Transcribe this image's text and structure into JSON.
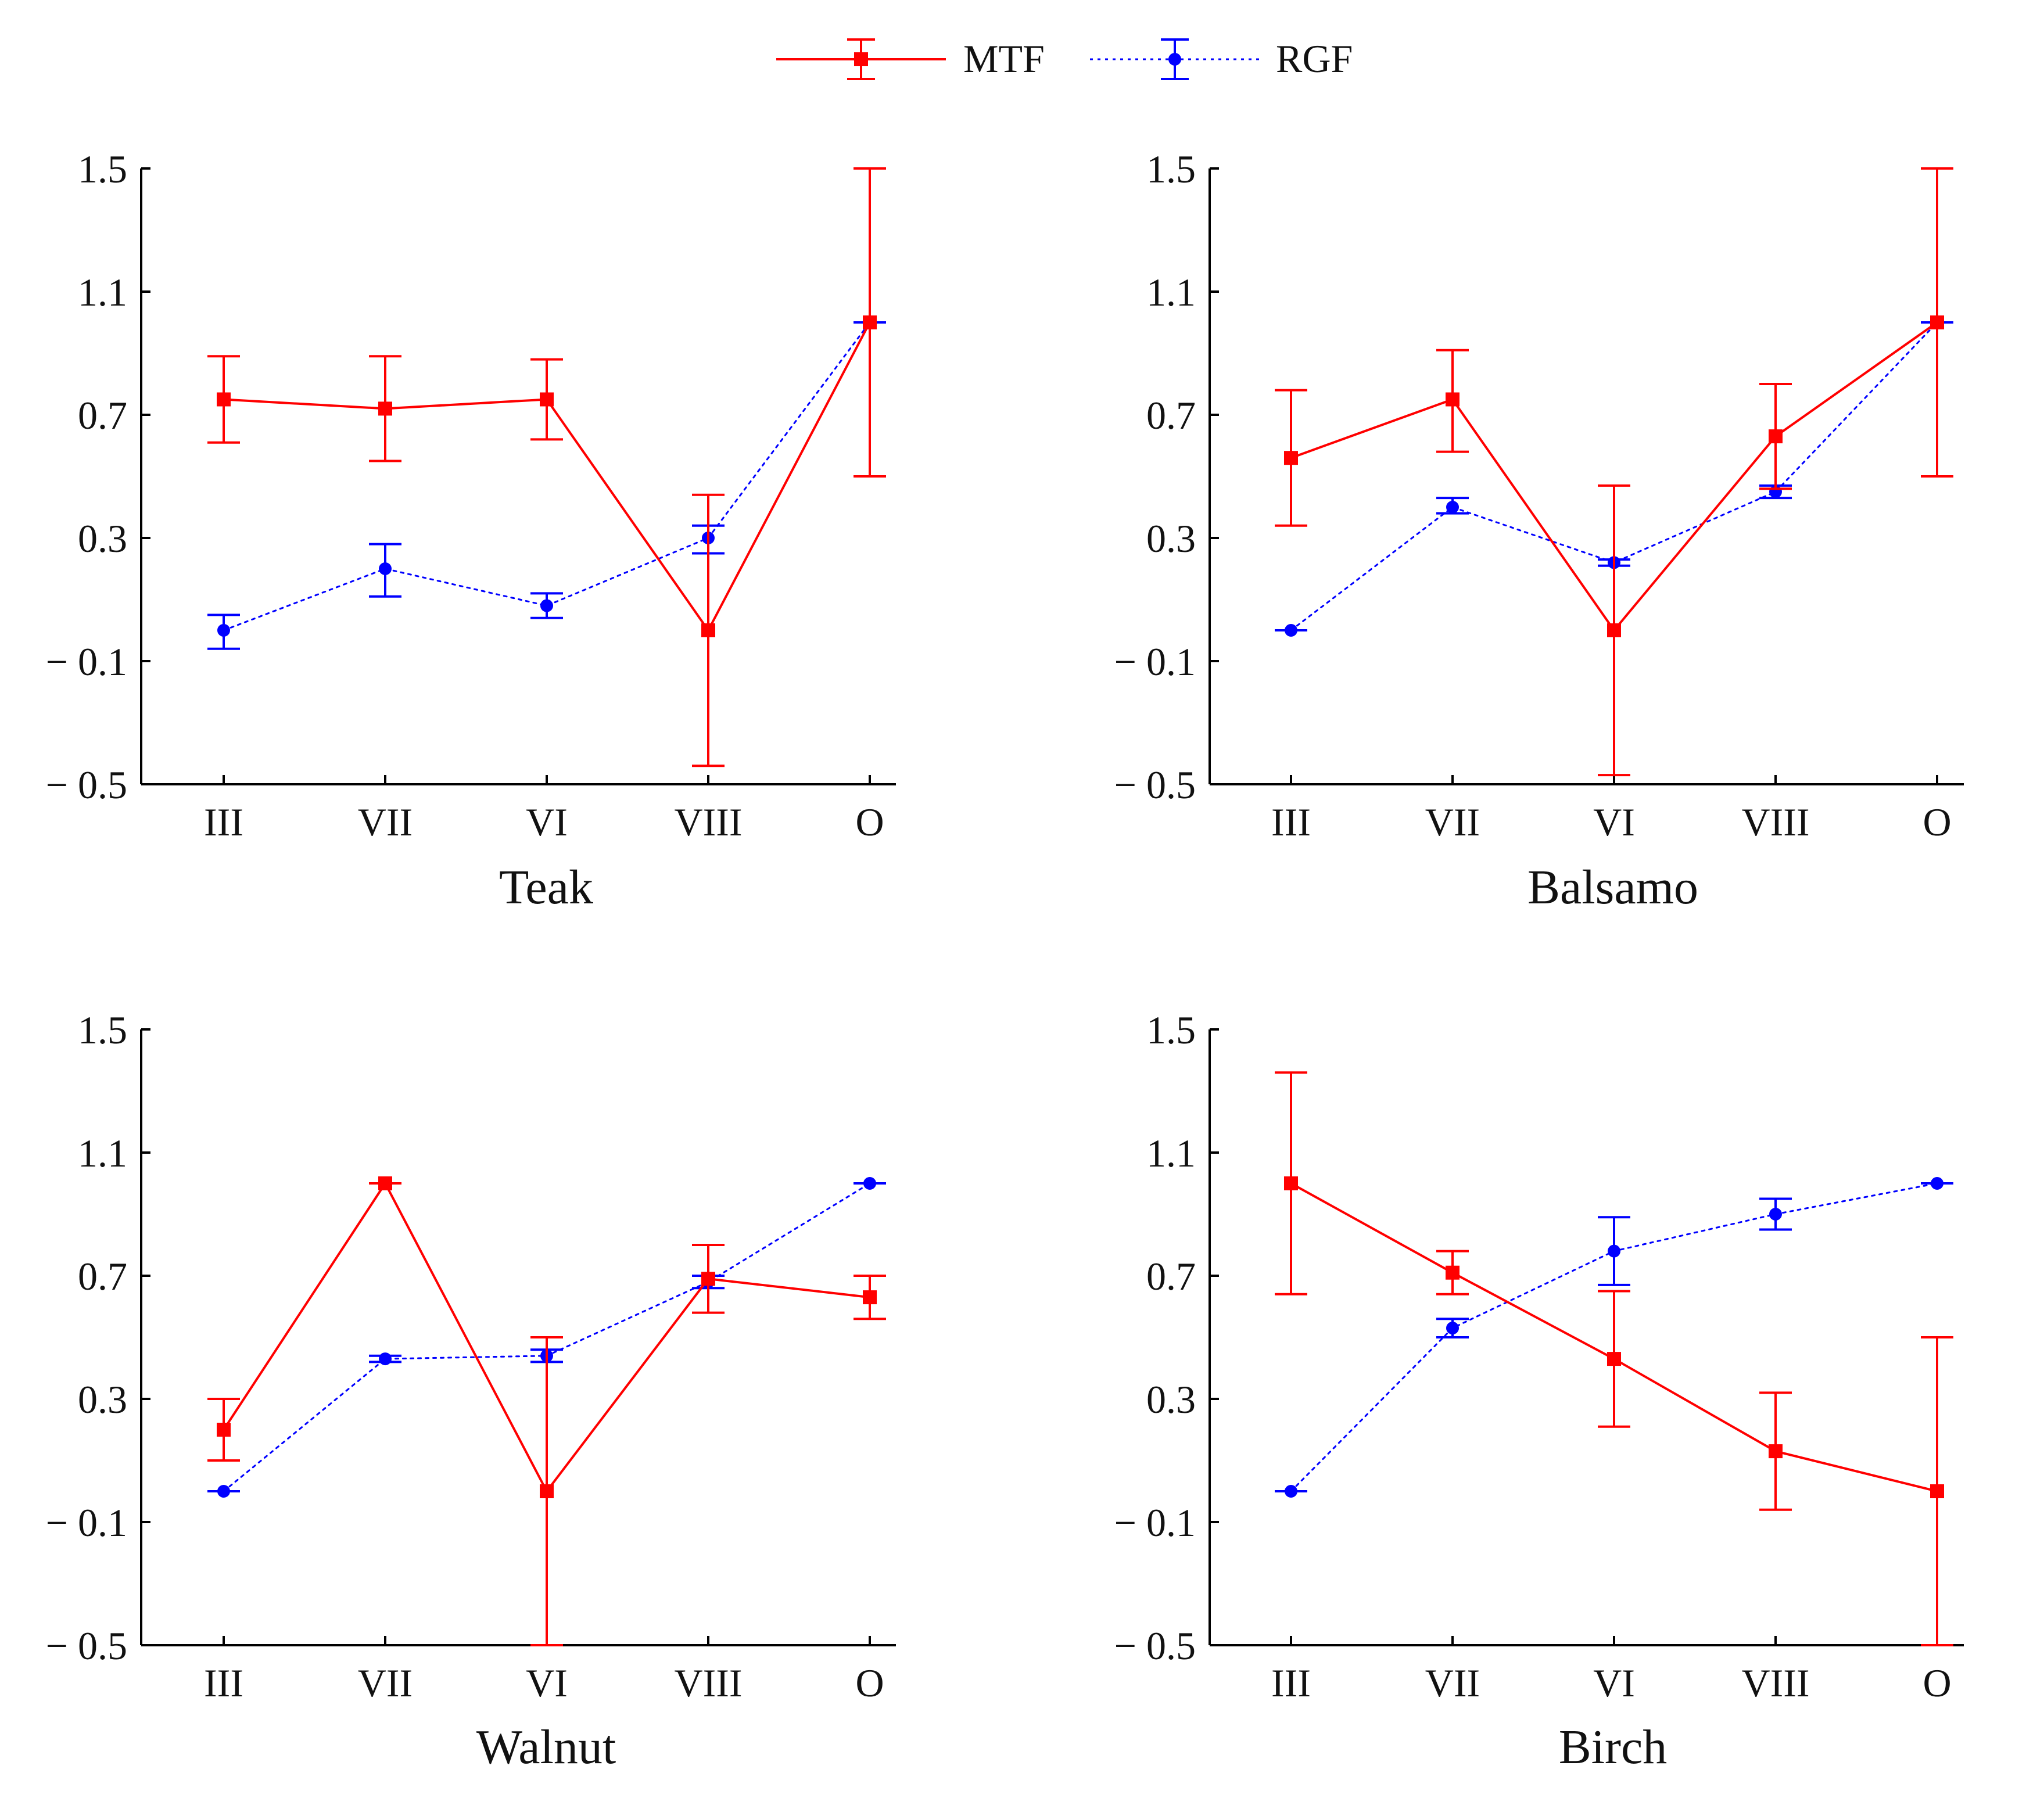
{
  "legend": {
    "placement": "top-center",
    "entries": [
      {
        "name": "MTF",
        "color": "#ff0000",
        "marker": "square",
        "line": "solid"
      },
      {
        "name": "RGF",
        "color": "#0000ff",
        "marker": "circle",
        "line": "dotted"
      }
    ]
  },
  "chart_data": [
    {
      "type": "line",
      "title": "Teak",
      "categories": [
        "III",
        "VII",
        "VI",
        "VIII",
        "O"
      ],
      "ylim": [
        -0.5,
        1.5
      ],
      "yticks": [
        -0.5,
        -0.1,
        0.3,
        0.7,
        1.1,
        1.5
      ],
      "ytick_labels": [
        "− 0.5",
        "− 0.1",
        "0.3",
        "0.7",
        "1.1",
        "1.5"
      ],
      "series": [
        {
          "name": "MTF",
          "values": [
            0.75,
            0.72,
            0.75,
            0.0,
            1.0
          ],
          "err_low": [
            0.14,
            0.17,
            0.13,
            0.44,
            0.5
          ],
          "err_high": [
            0.14,
            0.17,
            0.13,
            0.44,
            0.5
          ]
        },
        {
          "name": "RGF",
          "values": [
            0.0,
            0.2,
            0.08,
            0.3,
            1.0
          ],
          "err_low": [
            0.06,
            0.09,
            0.04,
            0.05,
            0.0
          ],
          "err_high": [
            0.05,
            0.08,
            0.04,
            0.04,
            0.0
          ]
        }
      ]
    },
    {
      "type": "line",
      "title": "Balsamo",
      "categories": [
        "III",
        "VII",
        "VI",
        "VIII",
        "O"
      ],
      "ylim": [
        -0.5,
        1.5
      ],
      "yticks": [
        -0.5,
        -0.1,
        0.3,
        0.7,
        1.1,
        1.5
      ],
      "ytick_labels": [
        "− 0.5",
        "− 0.1",
        "0.3",
        "0.7",
        "1.1",
        "1.5"
      ],
      "series": [
        {
          "name": "MTF",
          "values": [
            0.56,
            0.75,
            0.0,
            0.63,
            1.0
          ],
          "err_low": [
            0.22,
            0.17,
            0.47,
            0.17,
            0.5
          ],
          "err_high": [
            0.22,
            0.16,
            0.47,
            0.17,
            0.5
          ]
        },
        {
          "name": "RGF",
          "values": [
            0.0,
            0.4,
            0.22,
            0.45,
            1.0
          ],
          "err_low": [
            0.0,
            0.02,
            0.01,
            0.02,
            0.0
          ],
          "err_high": [
            0.0,
            0.03,
            0.01,
            0.02,
            0.0
          ]
        }
      ]
    },
    {
      "type": "line",
      "title": "Walnut",
      "categories": [
        "III",
        "VII",
        "VI",
        "VIII",
        "O"
      ],
      "ylim": [
        -0.5,
        1.5
      ],
      "yticks": [
        -0.5,
        -0.1,
        0.3,
        0.7,
        1.1,
        1.5
      ],
      "ytick_labels": [
        "− 0.5",
        "− 0.1",
        "0.3",
        "0.7",
        "1.1",
        "1.5"
      ],
      "series": [
        {
          "name": "MTF",
          "values": [
            0.2,
            1.0,
            0.0,
            0.69,
            0.63
          ],
          "err_low": [
            0.1,
            0.0,
            0.5,
            0.11,
            0.07
          ],
          "err_high": [
            0.1,
            0.0,
            0.5,
            0.11,
            0.07
          ]
        },
        {
          "name": "RGF",
          "values": [
            0.0,
            0.43,
            0.44,
            0.68,
            1.0
          ],
          "err_low": [
            0.0,
            0.01,
            0.02,
            0.02,
            0.0
          ],
          "err_high": [
            0.0,
            0.01,
            0.02,
            0.02,
            0.0
          ]
        }
      ]
    },
    {
      "type": "line",
      "title": "Birch",
      "categories": [
        "III",
        "VII",
        "VI",
        "VIII",
        "O"
      ],
      "ylim": [
        -0.5,
        1.5
      ],
      "yticks": [
        -0.5,
        -0.1,
        0.3,
        0.7,
        1.1,
        1.5
      ],
      "ytick_labels": [
        "− 0.5",
        "− 0.1",
        "0.3",
        "0.7",
        "1.1",
        "1.5"
      ],
      "series": [
        {
          "name": "MTF",
          "values": [
            1.0,
            0.71,
            0.43,
            0.13,
            0.0
          ],
          "err_low": [
            0.36,
            0.07,
            0.22,
            0.19,
            0.5
          ],
          "err_high": [
            0.36,
            0.07,
            0.22,
            0.19,
            0.5
          ]
        },
        {
          "name": "RGF",
          "values": [
            0.0,
            0.53,
            0.78,
            0.9,
            1.0
          ],
          "err_low": [
            0.0,
            0.03,
            0.11,
            0.05,
            0.0
          ],
          "err_high": [
            0.0,
            0.03,
            0.11,
            0.05,
            0.0
          ]
        }
      ]
    }
  ]
}
